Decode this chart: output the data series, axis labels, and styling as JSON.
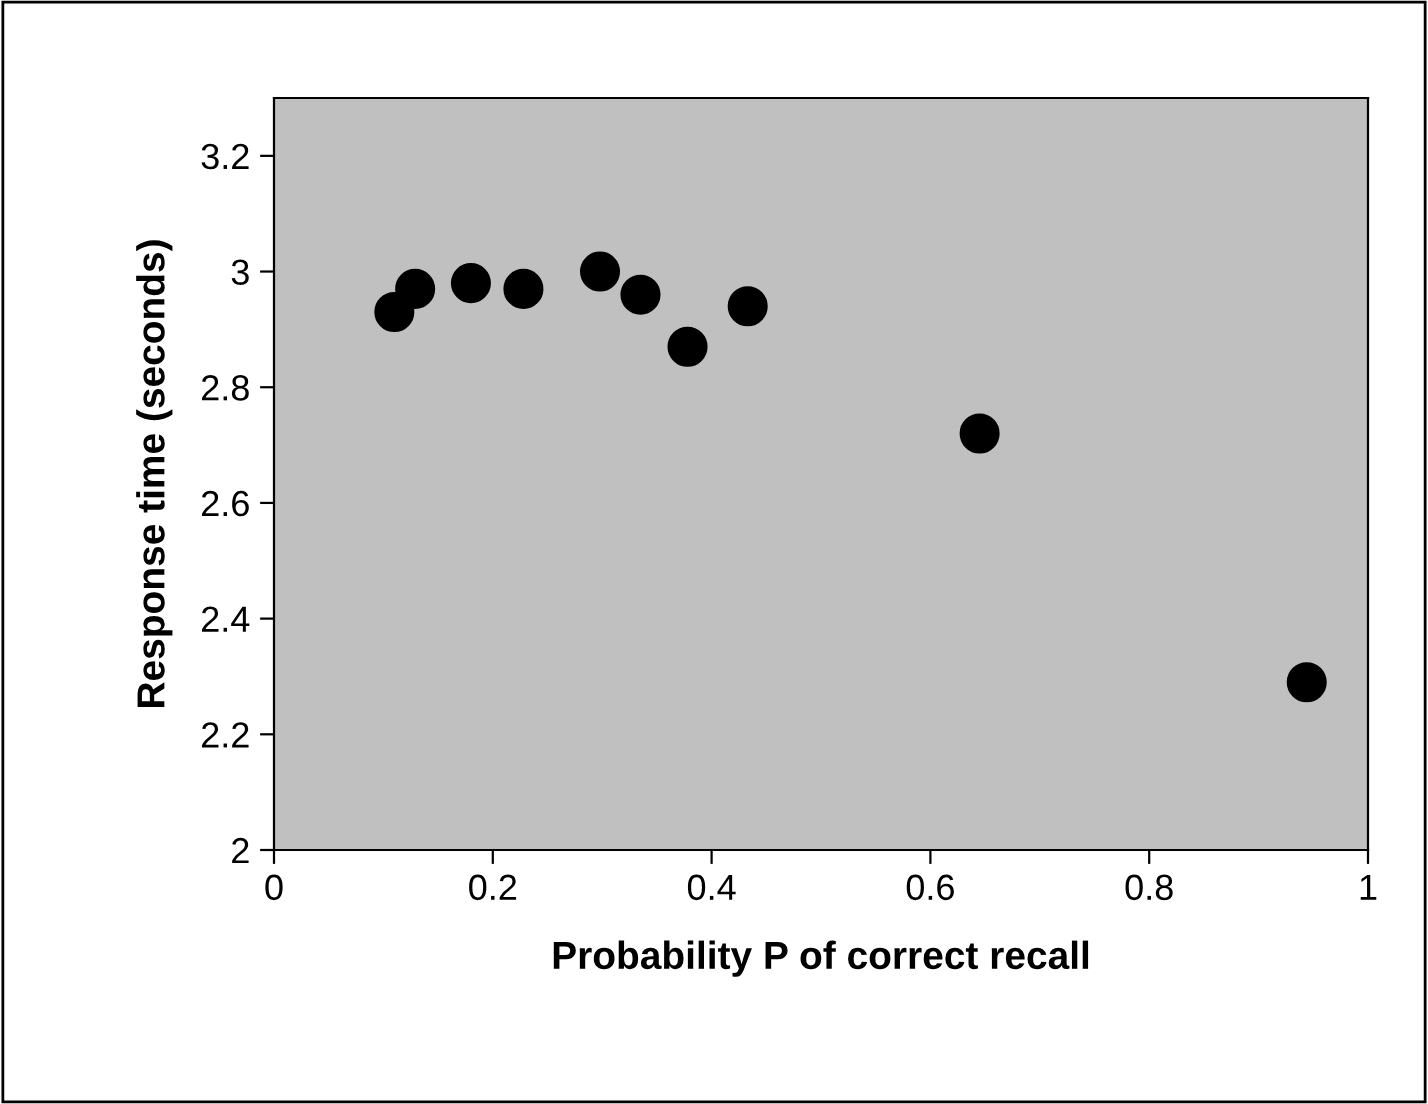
{
  "chart_data": {
    "type": "scatter",
    "xlabel": "Probability P of correct recall",
    "ylabel": "Response time (seconds)",
    "x": [
      0.11,
      0.129,
      0.18,
      0.228,
      0.298,
      0.335,
      0.378,
      0.433,
      0.645,
      0.944
    ],
    "series": [
      {
        "color": "#000000",
        "values": [
          2.93,
          2.97,
          2.98,
          2.97,
          3.0,
          2.96,
          2.87,
          2.94,
          2.72,
          2.29
        ]
      }
    ],
    "xlim": [
      0,
      1
    ],
    "xticks": [
      0,
      0.2,
      0.4,
      0.6,
      0.8,
      1
    ],
    "ylim": [
      2,
      3.3
    ],
    "yticks": [
      2,
      2.2,
      2.4,
      2.6,
      2.8,
      3,
      3.2
    ],
    "grid": false,
    "legend": false,
    "marker": "circle"
  }
}
